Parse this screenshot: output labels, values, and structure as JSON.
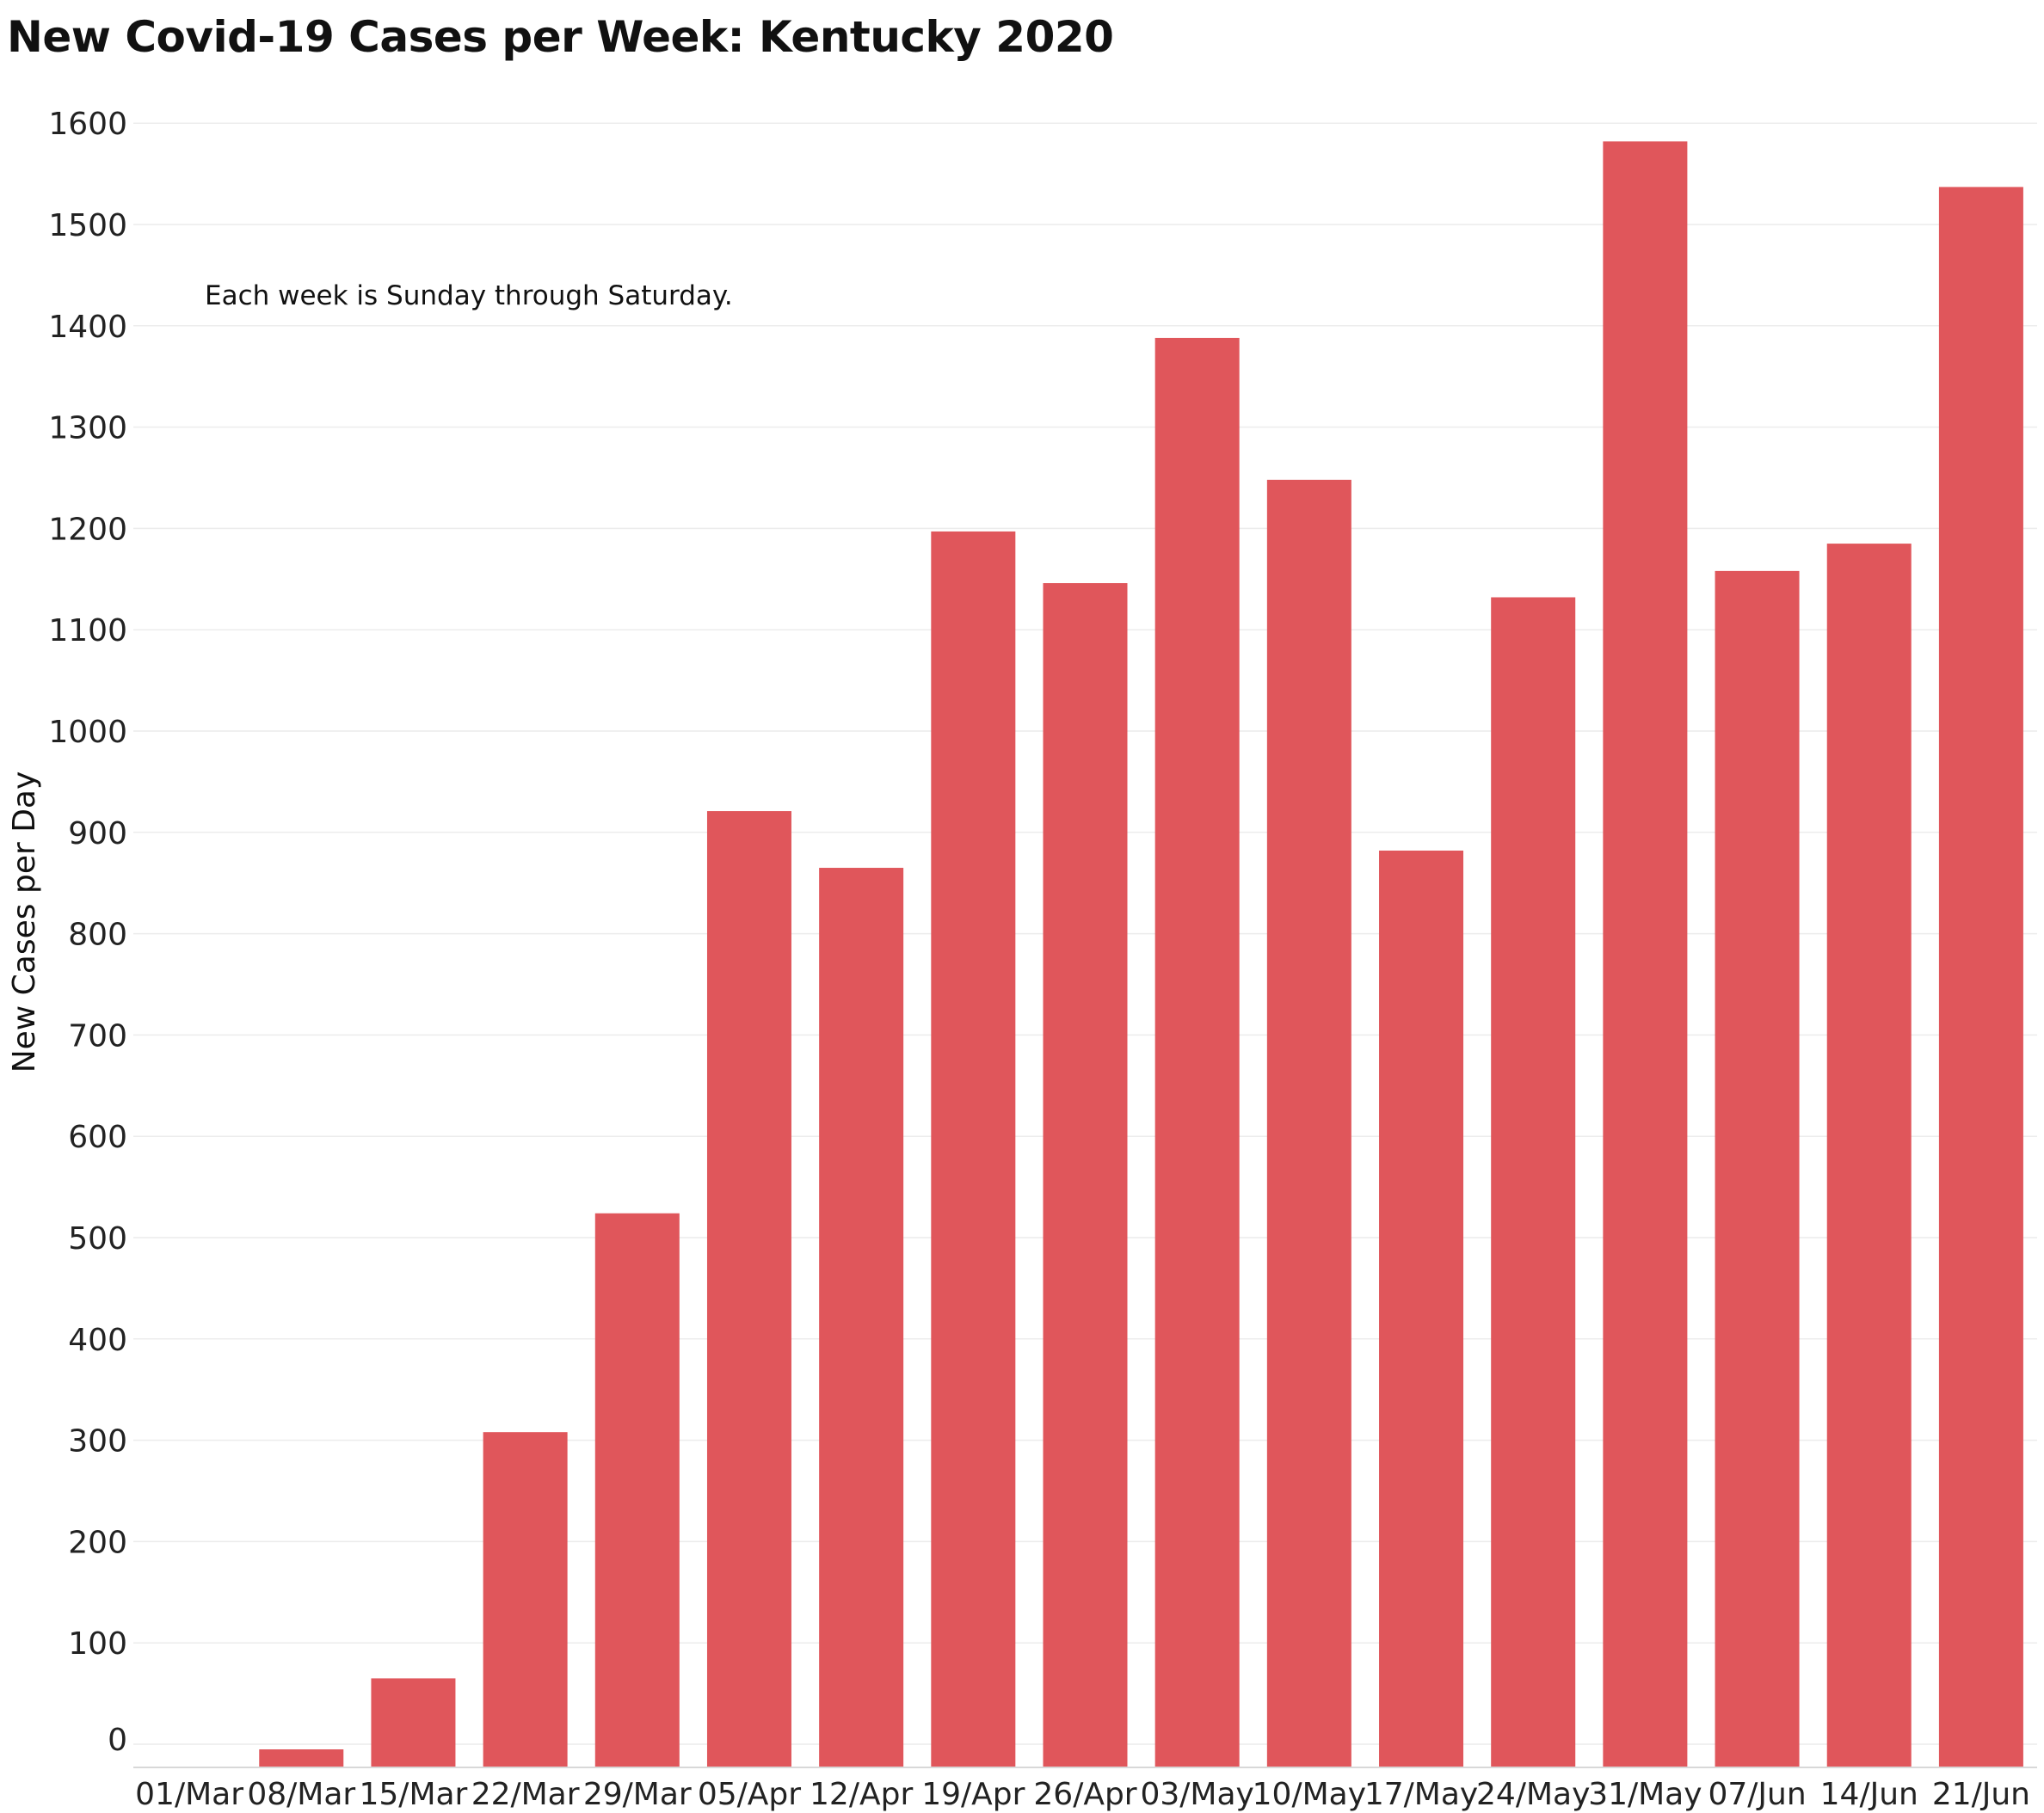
{
  "chart_data": {
    "type": "bar",
    "title": "New Covid-19 Cases per Week:  Kentucky 2020",
    "annotation": "Each week is Sunday through Saturday.",
    "xlabel": "",
    "ylabel": "New Cases per Day",
    "ylim": [
      -25,
      1650
    ],
    "yticks": [
      0,
      100,
      200,
      300,
      400,
      500,
      600,
      700,
      800,
      900,
      1000,
      1100,
      1200,
      1300,
      1400,
      1500,
      1600
    ],
    "grid": true,
    "bar_color": "#e0565b",
    "categories": [
      "01/Mar",
      "08/Mar",
      "15/Mar",
      "22/Mar",
      "29/Mar",
      "05/Apr",
      "12/Apr",
      "19/Apr",
      "26/Apr",
      "03/May",
      "10/May",
      "17/May",
      "24/May",
      "31/May",
      "07/Jun",
      "14/Jun",
      "21/Jun"
    ],
    "values": [
      0,
      -8,
      65,
      308,
      524,
      921,
      865,
      1197,
      1146,
      1388,
      1248,
      882,
      1132,
      1582,
      1158,
      1185,
      1537
    ]
  }
}
